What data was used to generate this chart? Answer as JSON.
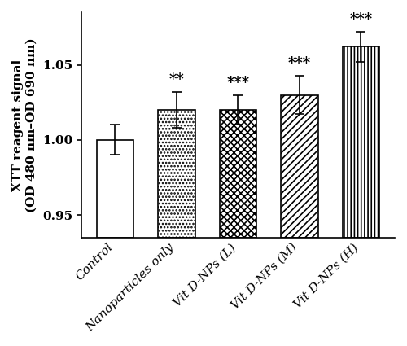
{
  "categories": [
    "Control",
    "Nanoparticles only",
    "Vit D-NPs (L)",
    "Vit D-NPs (M)",
    "Vit D-NPs (H)"
  ],
  "values": [
    1.0,
    1.02,
    1.02,
    1.03,
    1.062
  ],
  "errors": [
    0.01,
    0.012,
    0.01,
    0.013,
    0.01
  ],
  "significance": [
    "",
    "**",
    "***",
    "***",
    "***"
  ],
  "ylim": [
    0.935,
    1.085
  ],
  "yticks": [
    0.95,
    1.0,
    1.05
  ],
  "ylabel": "XTT reagent signal\n(OD 480 nm–OD 690 nm)",
  "hatch_patterns": [
    "",
    "....",
    "xxxx",
    "////",
    "||||"
  ],
  "bar_edgecolor": "#000000",
  "bar_facecolor": "#ffffff",
  "sig_fontsize": 13,
  "label_fontsize": 11,
  "tick_fontsize": 11,
  "bar_width": 0.6,
  "figsize": [
    5.0,
    4.25
  ],
  "dpi": 100
}
